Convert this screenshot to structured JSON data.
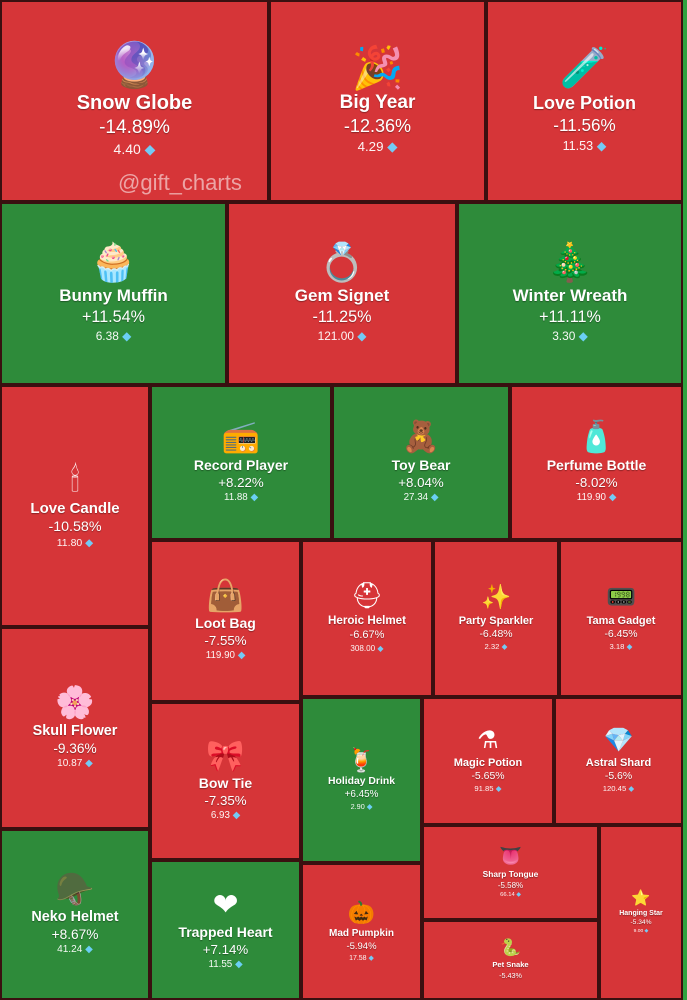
{
  "watermark": "@gift_charts",
  "colors": {
    "down": "#d63538",
    "up": "#2e8b3a"
  },
  "currency_icon": "gem-icon",
  "chart_data": {
    "type": "treemap",
    "title": "",
    "items": [
      {
        "name": "Snow Globe",
        "change": "-14.89%",
        "change_value": -14.89,
        "price": "4.40",
        "icon": "🔮"
      },
      {
        "name": "Big Year",
        "change": "-12.36%",
        "change_value": -12.36,
        "price": "4.29",
        "icon": "🎉"
      },
      {
        "name": "Love Potion",
        "change": "-11.56%",
        "change_value": -11.56,
        "price": "11.53",
        "icon": "🧪"
      },
      {
        "name": "Bunny Muffin",
        "change": "+11.54%",
        "change_value": 11.54,
        "price": "6.38",
        "icon": "🧁"
      },
      {
        "name": "Gem Signet",
        "change": "-11.25%",
        "change_value": -11.25,
        "price": "121.00",
        "icon": "💍"
      },
      {
        "name": "Winter Wreath",
        "change": "+11.11%",
        "change_value": 11.11,
        "price": "3.30",
        "icon": "🎄"
      },
      {
        "name": "Love Candle",
        "change": "-10.58%",
        "change_value": -10.58,
        "price": "11.80",
        "icon": "🕯"
      },
      {
        "name": "Record Player",
        "change": "+8.22%",
        "change_value": 8.22,
        "price": "11.88",
        "icon": "📻"
      },
      {
        "name": "Toy Bear",
        "change": "+8.04%",
        "change_value": 8.04,
        "price": "27.34",
        "icon": "🧸"
      },
      {
        "name": "Perfume Bottle",
        "change": "-8.02%",
        "change_value": -8.02,
        "price": "119.90",
        "icon": "🧴"
      },
      {
        "name": "Loot Bag",
        "change": "-7.55%",
        "change_value": -7.55,
        "price": "119.90",
        "icon": "👜"
      },
      {
        "name": "Heroic Helmet",
        "change": "-6.67%",
        "change_value": -6.67,
        "price": "308.00",
        "icon": "⛑"
      },
      {
        "name": "Party Sparkler",
        "change": "-6.48%",
        "change_value": -6.48,
        "price": "2.32",
        "icon": "✨"
      },
      {
        "name": "Tama Gadget",
        "change": "-6.45%",
        "change_value": -6.45,
        "price": "3.18",
        "icon": "📟"
      },
      {
        "name": "Skull Flower",
        "change": "-9.36%",
        "change_value": -9.36,
        "price": "10.87",
        "icon": "🌸"
      },
      {
        "name": "Bow Tie",
        "change": "-7.35%",
        "change_value": -7.35,
        "price": "6.93",
        "icon": "🎀"
      },
      {
        "name": "Holiday Drink",
        "change": "+6.45%",
        "change_value": 6.45,
        "price": "2.90",
        "icon": "🍹"
      },
      {
        "name": "Magic Potion",
        "change": "-5.65%",
        "change_value": -5.65,
        "price": "91.85",
        "icon": "⚗"
      },
      {
        "name": "Astral Shard",
        "change": "-5.6%",
        "change_value": -5.6,
        "price": "120.45",
        "icon": "💎"
      },
      {
        "name": "Neko Helmet",
        "change": "+8.67%",
        "change_value": 8.67,
        "price": "41.24",
        "icon": "🪖"
      },
      {
        "name": "Trapped Heart",
        "change": "+7.14%",
        "change_value": 7.14,
        "price": "11.55",
        "icon": "❤"
      },
      {
        "name": "Mad Pumpkin",
        "change": "-5.94%",
        "change_value": -5.94,
        "price": "17.58",
        "icon": "🎃"
      },
      {
        "name": "Sharp Tongue",
        "change": "-5.58%",
        "change_value": -5.58,
        "price": "66.14",
        "icon": "👅"
      },
      {
        "name": "Pet Snake",
        "change": "-5.43%",
        "change_value": -5.43,
        "price": "",
        "icon": "🐍"
      },
      {
        "name": "Hanging Star",
        "change": "-5.34%",
        "change_value": -5.34,
        "price": "9.00",
        "icon": "⭐"
      }
    ]
  }
}
